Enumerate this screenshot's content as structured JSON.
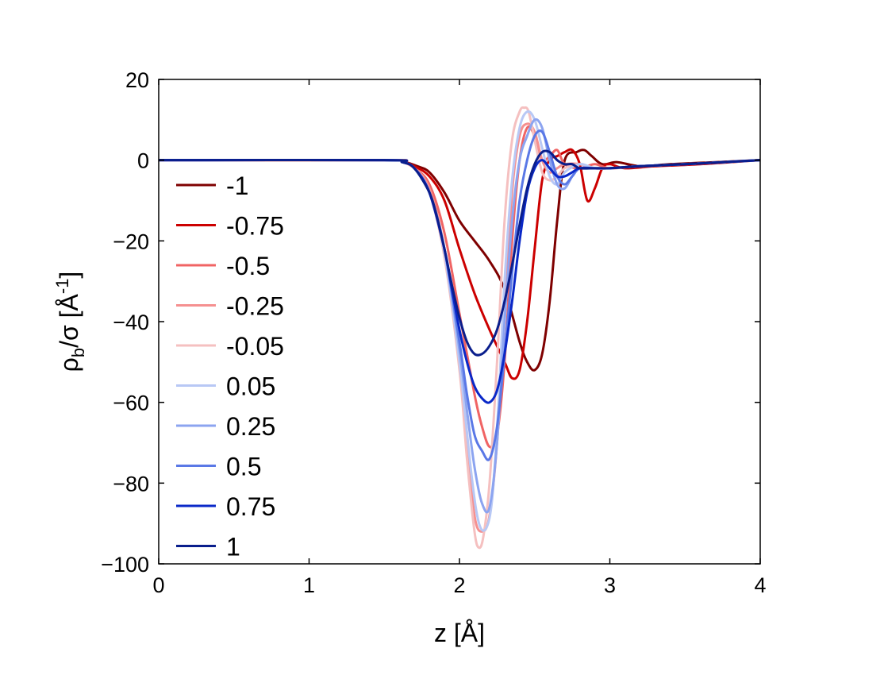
{
  "chart_data": {
    "type": "line",
    "xlabel": "z [Å]",
    "ylabel": {
      "base": "ρ",
      "sub": "b",
      "mid": "/σ [Å",
      "sup": "-1",
      "end": "]"
    },
    "xlim": [
      0,
      4
    ],
    "ylim": [
      -100,
      20
    ],
    "xticks": [
      0,
      1,
      2,
      3,
      4
    ],
    "yticks": [
      20,
      0,
      -20,
      -40,
      -60,
      -80,
      -100
    ],
    "xtick_labels": [
      "0",
      "1",
      "2",
      "3",
      "4"
    ],
    "ytick_labels": [
      "20",
      "0",
      "−20",
      "−40",
      "−60",
      "−80",
      "−100"
    ],
    "grid": false,
    "legend_position": "left",
    "series": [
      {
        "name": "-1",
        "color": "#7f0000",
        "x": [
          0,
          1.5,
          1.62,
          1.72,
          1.8,
          1.9,
          2.0,
          2.1,
          2.2,
          2.3,
          2.4,
          2.45,
          2.5,
          2.55,
          2.6,
          2.65,
          2.7,
          2.78,
          2.83,
          2.88,
          2.95,
          3.05,
          3.2,
          3.4,
          3.7,
          4.0
        ],
        "y": [
          0,
          0,
          -0.3,
          -1.5,
          -3,
          -8,
          -15,
          -20,
          -25,
          -32,
          -45,
          -50,
          -52,
          -48,
          -35,
          -15,
          0,
          2,
          2.5,
          1,
          -1,
          -0.5,
          -1.5,
          -1,
          -0.5,
          0
        ]
      },
      {
        "name": "-0.75",
        "color": "#cc0000",
        "x": [
          0,
          1.5,
          1.62,
          1.7,
          1.8,
          1.9,
          2.0,
          2.1,
          2.2,
          2.3,
          2.35,
          2.4,
          2.45,
          2.5,
          2.55,
          2.6,
          2.65,
          2.7,
          2.75,
          2.8,
          2.85,
          2.9,
          2.95,
          3.0,
          3.1,
          3.3,
          3.6,
          4.0
        ],
        "y": [
          0,
          0,
          -0.3,
          -1.5,
          -4,
          -10,
          -22,
          -33,
          -42,
          -50,
          -54,
          -52,
          -40,
          -22,
          -5,
          0,
          1,
          2,
          2.5,
          -1,
          -10,
          -7,
          -2,
          -1,
          -2,
          -1.5,
          -1,
          0
        ]
      },
      {
        "name": "-0.5",
        "color": "#f06464",
        "x": [
          0,
          1.5,
          1.62,
          1.7,
          1.8,
          1.9,
          2.0,
          2.1,
          2.15,
          2.2,
          2.25,
          2.3,
          2.35,
          2.4,
          2.45,
          2.5,
          2.55,
          2.6,
          2.65,
          2.7,
          2.8,
          2.9,
          3.0,
          3.2,
          3.5,
          4.0
        ],
        "y": [
          0,
          0,
          -0.5,
          -2,
          -6,
          -18,
          -38,
          -58,
          -66,
          -71,
          -68,
          -50,
          -20,
          0,
          8,
          6,
          0,
          1,
          2.5,
          -1,
          -2,
          -1,
          -2,
          -1.5,
          -1,
          0
        ]
      },
      {
        "name": "-0.25",
        "color": "#f59090",
        "x": [
          0,
          1.5,
          1.62,
          1.7,
          1.8,
          1.9,
          2.0,
          2.05,
          2.1,
          2.15,
          2.2,
          2.25,
          2.3,
          2.35,
          2.4,
          2.45,
          2.5,
          2.55,
          2.6,
          2.65,
          2.7,
          2.8,
          2.9,
          3.0,
          3.2,
          3.5,
          4.0
        ],
        "y": [
          0,
          0,
          -0.5,
          -2,
          -7,
          -22,
          -48,
          -68,
          -88,
          -92,
          -88,
          -70,
          -40,
          -8,
          6,
          9,
          7,
          0,
          -3,
          -2,
          -1,
          -1,
          -2,
          -2,
          -1.5,
          -1,
          0
        ]
      },
      {
        "name": "-0.05",
        "color": "#f5c0c0",
        "x": [
          0,
          1.5,
          1.62,
          1.7,
          1.8,
          1.9,
          2.0,
          2.05,
          2.1,
          2.13,
          2.16,
          2.2,
          2.25,
          2.3,
          2.35,
          2.4,
          2.43,
          2.46,
          2.5,
          2.55,
          2.6,
          2.65,
          2.7,
          2.8,
          2.9,
          3.0,
          3.2,
          3.5,
          4.0
        ],
        "y": [
          0,
          0,
          -0.5,
          -2,
          -8,
          -24,
          -52,
          -74,
          -92,
          -96,
          -93,
          -80,
          -50,
          -15,
          5,
          12,
          13,
          12,
          5,
          -3,
          -5,
          -4,
          -2,
          -1,
          -2,
          -2,
          -1.5,
          -1,
          0
        ]
      },
      {
        "name": "0.05",
        "color": "#b8c8f5",
        "x": [
          0,
          1.5,
          1.62,
          1.7,
          1.8,
          1.9,
          2.0,
          2.08,
          2.13,
          2.18,
          2.22,
          2.26,
          2.3,
          2.35,
          2.4,
          2.45,
          2.5,
          2.55,
          2.6,
          2.65,
          2.7,
          2.8,
          2.9,
          3.0,
          3.2,
          3.5,
          4.0
        ],
        "y": [
          0,
          0,
          -0.5,
          -2,
          -8,
          -23,
          -50,
          -78,
          -90,
          -91,
          -83,
          -60,
          -30,
          -5,
          8,
          12,
          10,
          3,
          -4,
          -6,
          -3,
          -1,
          -2,
          -2,
          -1.5,
          -1,
          0
        ]
      },
      {
        "name": "0.25",
        "color": "#8ca4f0",
        "x": [
          0,
          1.5,
          1.62,
          1.7,
          1.8,
          1.9,
          2.0,
          2.05,
          2.1,
          2.15,
          2.2,
          2.25,
          2.3,
          2.35,
          2.4,
          2.45,
          2.5,
          2.55,
          2.6,
          2.65,
          2.7,
          2.75,
          2.8,
          2.9,
          3.0,
          3.2,
          3.5,
          4.0
        ],
        "y": [
          0,
          0,
          -0.5,
          -2,
          -8,
          -22,
          -47,
          -62,
          -76,
          -85,
          -86,
          -70,
          -40,
          -15,
          0,
          6,
          10,
          8,
          0,
          -6,
          -7,
          -4,
          -2,
          -2,
          -2,
          -1.5,
          -1,
          0
        ]
      },
      {
        "name": "0.5",
        "color": "#5a78e6",
        "x": [
          0,
          1.5,
          1.62,
          1.7,
          1.8,
          1.9,
          2.0,
          2.05,
          2.1,
          2.15,
          2.2,
          2.25,
          2.3,
          2.35,
          2.4,
          2.45,
          2.5,
          2.55,
          2.6,
          2.65,
          2.7,
          2.75,
          2.8,
          2.9,
          3.0,
          3.2,
          3.5,
          4.0
        ],
        "y": [
          0,
          0,
          -0.5,
          -2,
          -8,
          -22,
          -45,
          -58,
          -68,
          -72,
          -74,
          -66,
          -48,
          -28,
          -10,
          0,
          6,
          7,
          2,
          -4,
          -6,
          -4,
          -2,
          -2,
          -2,
          -1.5,
          -1,
          0
        ]
      },
      {
        "name": "0.75",
        "color": "#0a28c8",
        "x": [
          0,
          1.5,
          1.62,
          1.7,
          1.8,
          1.9,
          1.95,
          2.0,
          2.05,
          2.1,
          2.15,
          2.2,
          2.25,
          2.3,
          2.35,
          2.4,
          2.45,
          2.5,
          2.55,
          2.6,
          2.65,
          2.7,
          2.75,
          2.8,
          2.9,
          3.0,
          3.2,
          3.5,
          4.0
        ],
        "y": [
          0,
          0,
          -0.5,
          -2,
          -8,
          -22,
          -32,
          -42,
          -50,
          -56,
          -59,
          -60,
          -57,
          -48,
          -35,
          -20,
          -8,
          -2,
          0,
          -2,
          -4,
          -4,
          -3,
          -2,
          -2,
          -2,
          -1.5,
          -1,
          0
        ]
      },
      {
        "name": "1",
        "color": "#0a1e8c",
        "x": [
          0,
          1.5,
          1.62,
          1.7,
          1.8,
          1.85,
          1.9,
          1.95,
          2.0,
          2.05,
          2.1,
          2.15,
          2.2,
          2.25,
          2.3,
          2.35,
          2.4,
          2.45,
          2.5,
          2.55,
          2.6,
          2.65,
          2.7,
          2.75,
          2.8,
          2.9,
          3.0,
          3.2,
          3.5,
          4.0
        ],
        "y": [
          0,
          0,
          -0.5,
          -2,
          -8,
          -14,
          -22,
          -31,
          -39,
          -45,
          -48,
          -48,
          -46,
          -42,
          -35,
          -26,
          -16,
          -7,
          -1,
          2,
          2,
          0,
          -1,
          -1,
          -2,
          -2,
          -2,
          -1.5,
          -1,
          0
        ]
      }
    ]
  }
}
